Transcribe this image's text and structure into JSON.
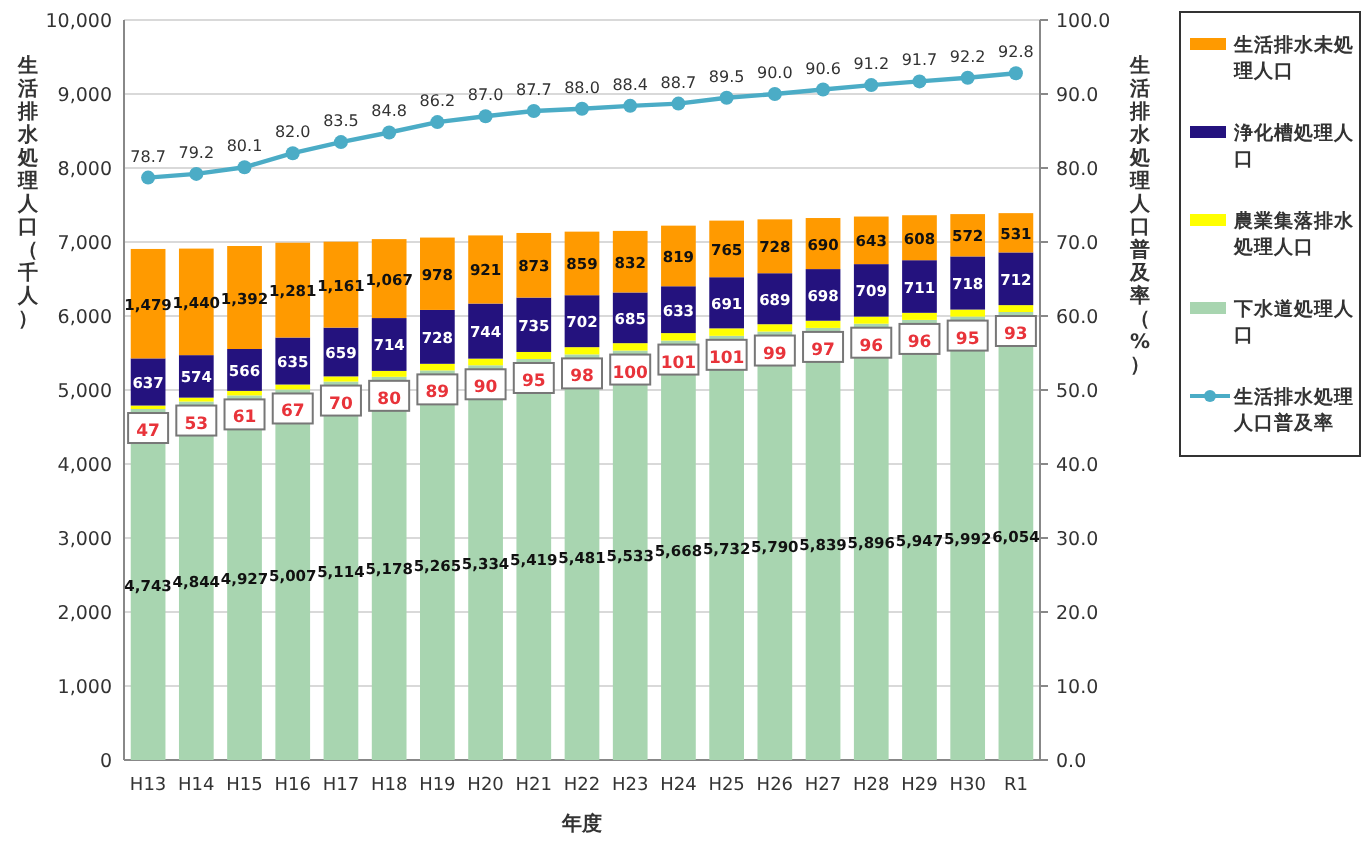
{
  "chart_data": {
    "type": "bar",
    "stacked": true,
    "xlabel": "年度",
    "ylabel": "生活排水処理人口（千人）",
    "y2label": "生活排水処理人口普及率（%）",
    "categories": [
      "H13",
      "H14",
      "H15",
      "H16",
      "H17",
      "H18",
      "H19",
      "H20",
      "H21",
      "H22",
      "H23",
      "H24",
      "H25",
      "H26",
      "H27",
      "H28",
      "H29",
      "H30",
      "R1"
    ],
    "series": [
      {
        "name": "下水道処理人口",
        "color": "#a8d5b0",
        "values": [
          4743,
          4844,
          4927,
          5007,
          5114,
          5178,
          5265,
          5334,
          5419,
          5481,
          5533,
          5668,
          5732,
          5790,
          5839,
          5896,
          5947,
          5992,
          6054
        ],
        "value_labels": [
          "4,743",
          "4,844",
          "4,927",
          "5,007",
          "5,114",
          "5,178",
          "5,265",
          "5,334",
          "5,419",
          "5,481",
          "5,533",
          "5,668",
          "5,732",
          "5,790",
          "5,839",
          "5,896",
          "5,947",
          "5,992",
          "6,054"
        ]
      },
      {
        "name": "農業集落排水処理人口",
        "color": "#ffff00",
        "values": [
          47,
          53,
          61,
          67,
          70,
          80,
          89,
          90,
          95,
          98,
          100,
          101,
          101,
          99,
          97,
          96,
          96,
          95,
          93
        ],
        "value_labels": [
          "47",
          "53",
          "61",
          "67",
          "70",
          "80",
          "89",
          "90",
          "95",
          "98",
          "100",
          "101",
          "101",
          "99",
          "97",
          "96",
          "96",
          "95",
          "93"
        ]
      },
      {
        "name": "浄化槽処理人口",
        "color": "#24127e",
        "values": [
          637,
          574,
          566,
          635,
          659,
          714,
          728,
          744,
          735,
          702,
          685,
          633,
          691,
          689,
          698,
          709,
          711,
          718,
          712
        ],
        "value_labels": [
          "637",
          "574",
          "566",
          "635",
          "659",
          "714",
          "728",
          "744",
          "735",
          "702",
          "685",
          "633",
          "691",
          "689",
          "698",
          "709",
          "711",
          "718",
          "712"
        ]
      },
      {
        "name": "生活排水未処理人口",
        "color": "#ff9a00",
        "values": [
          1479,
          1440,
          1392,
          1281,
          1161,
          1067,
          978,
          921,
          873,
          859,
          832,
          819,
          765,
          728,
          690,
          643,
          608,
          572,
          531
        ],
        "value_labels": [
          "1,479",
          "1,440",
          "1,392",
          "1,281",
          "1,161",
          "1,067",
          "978",
          "921",
          "873",
          "859",
          "832",
          "819",
          "765",
          "728",
          "690",
          "643",
          "608",
          "572",
          "531"
        ]
      },
      {
        "name": "生活排水処理人口普及率",
        "type": "line",
        "axis": "y2",
        "color": "#4bacc6",
        "marker": "circle",
        "values": [
          78.7,
          79.2,
          80.1,
          82.0,
          83.5,
          84.8,
          86.2,
          87.0,
          87.7,
          88.0,
          88.4,
          88.7,
          89.5,
          90.0,
          90.6,
          91.2,
          91.7,
          92.2,
          92.8
        ],
        "value_labels": [
          "78.7",
          "79.2",
          "80.1",
          "82.0",
          "83.5",
          "84.8",
          "86.2",
          "87.0",
          "87.7",
          "88.0",
          "88.4",
          "88.7",
          "89.5",
          "90.0",
          "90.6",
          "91.2",
          "91.7",
          "92.2",
          "92.8"
        ]
      }
    ],
    "ylim": [
      0,
      10000
    ],
    "yticks": [
      0,
      {
        "value": 1000,
        "label": "1,000"
      },
      {
        "value": 2000,
        "label": "2,000"
      },
      {
        "value": 3000,
        "label": "3,000"
      },
      {
        "value": 4000,
        "label": "4,000"
      },
      {
        "value": 5000,
        "label": "5,000"
      },
      {
        "value": 6000,
        "label": "6,000"
      },
      {
        "value": 7000,
        "label": "7,000"
      },
      {
        "value": 8000,
        "label": "8,000"
      },
      {
        "value": 9000,
        "label": "9,000"
      },
      {
        "value": 10000,
        "label": "10,000"
      }
    ],
    "y2lim": [
      0,
      100
    ],
    "y2ticks": [
      {
        "value": 0,
        "label": "0.0"
      },
      {
        "value": 10,
        "label": "10.0"
      },
      {
        "value": 20,
        "label": "20.0"
      },
      {
        "value": 30,
        "label": "30.0"
      },
      {
        "value": 40,
        "label": "40.0"
      },
      {
        "value": 50,
        "label": "50.0"
      },
      {
        "value": 60,
        "label": "60.0"
      },
      {
        "value": 70,
        "label": "70.0"
      },
      {
        "value": 80,
        "label": "80.0"
      },
      {
        "value": 90,
        "label": "90.0"
      },
      {
        "value": 100,
        "label": "100.0"
      }
    ],
    "grid": "y",
    "legend": "right"
  }
}
